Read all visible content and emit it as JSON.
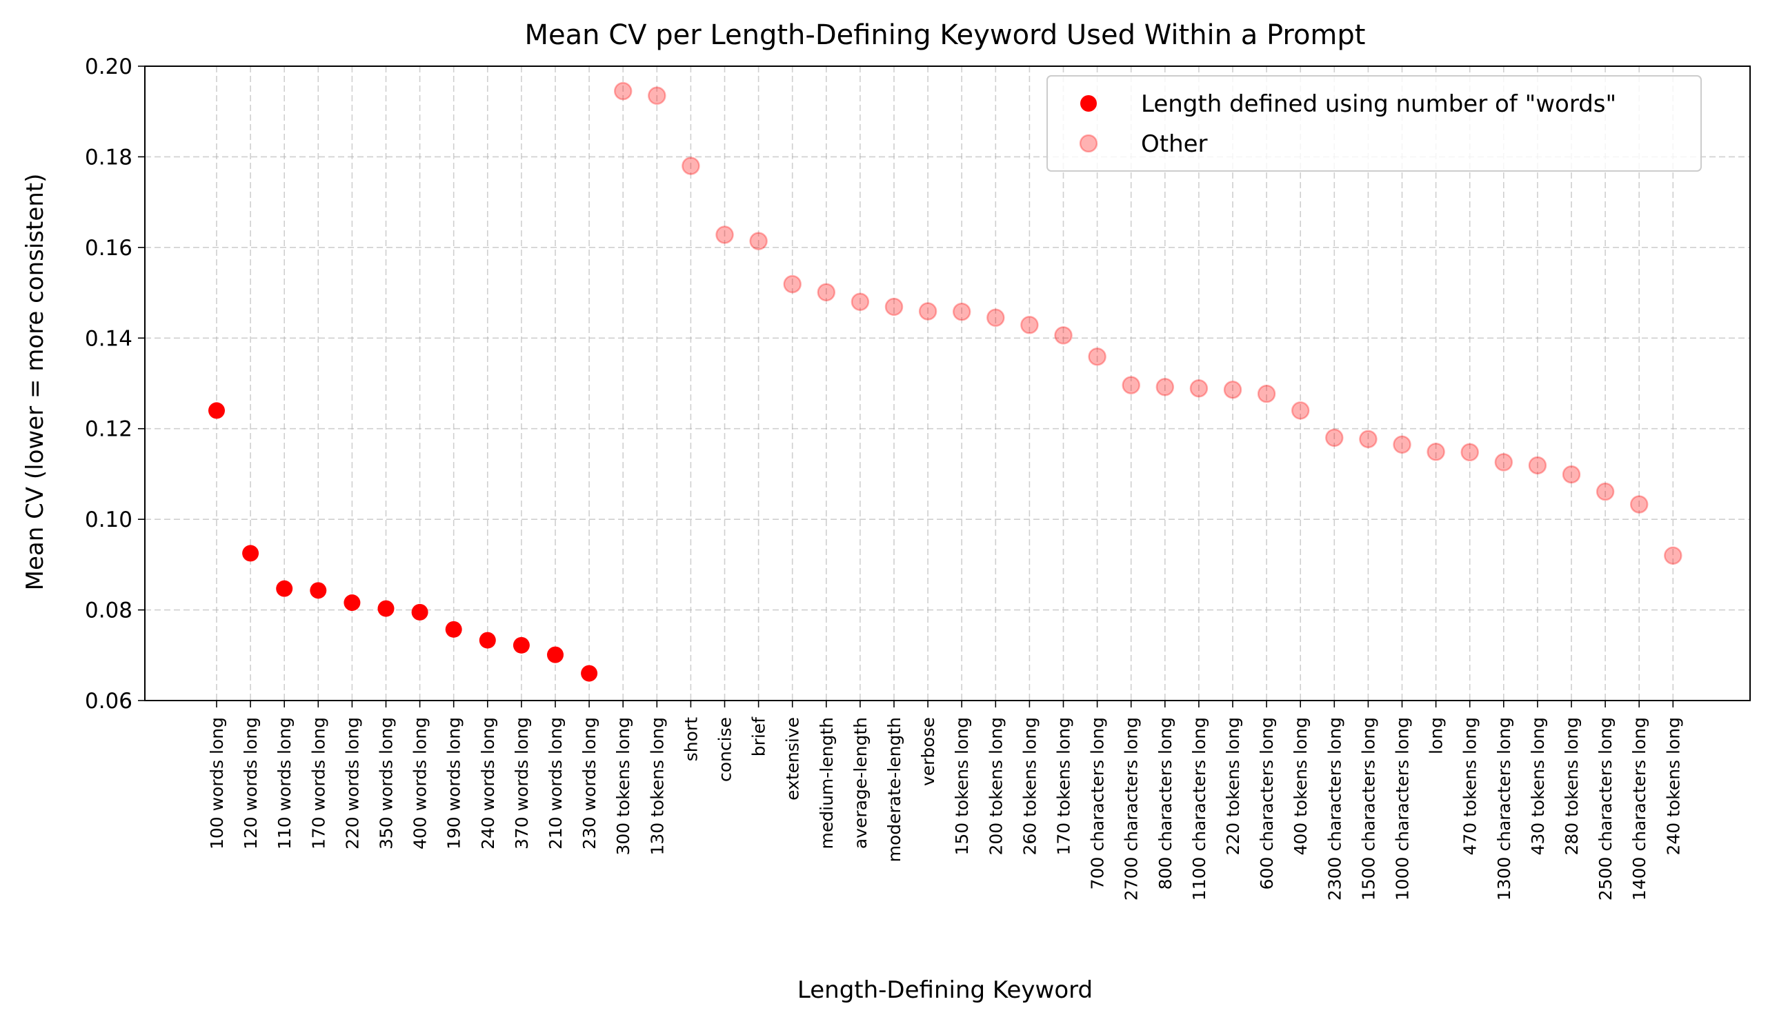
{
  "chart_data": {
    "type": "scatter",
    "title": "Mean CV per Length-Defining Keyword Used Within a Prompt",
    "xlabel": "Length-Defining Keyword",
    "ylabel": "Mean CV (lower = more consistent)",
    "ylim": [
      0.06,
      0.2
    ],
    "yticks": [
      "0.06",
      "0.08",
      "0.10",
      "0.12",
      "0.14",
      "0.16",
      "0.18",
      "0.20"
    ],
    "grid": true,
    "legend_position": "top-right",
    "categories": [
      "100 words long",
      "120 words long",
      "110 words long",
      "170 words long",
      "220 words long",
      "350 words long",
      "400 words long",
      "190 words long",
      "240 words long",
      "370 words long",
      "210 words long",
      "230 words long",
      "300 tokens long",
      "130 tokens long",
      "short",
      "concise",
      "brief",
      "extensive",
      "medium-length",
      "average-length",
      "moderate-length",
      "verbose",
      "150 tokens long",
      "200 tokens long",
      "260 tokens long",
      "170 tokens long",
      "700 characters long",
      "2700 characters long",
      "800 characters long",
      "1100 characters long",
      "220 tokens long",
      "600 characters long",
      "400 tokens long",
      "2300 characters long",
      "1500 characters long",
      "1000 characters long",
      "long",
      "470 tokens long",
      "1300 characters long",
      "430 tokens long",
      "280 tokens long",
      "2500 characters long",
      "1400 characters long",
      "240 tokens long"
    ],
    "series": [
      {
        "name": "Length defined using number of \"words\"",
        "color": "#ff0000",
        "opacity": 1.0,
        "indices": [
          0,
          1,
          2,
          3,
          4,
          5,
          6,
          7,
          8,
          9,
          10,
          11
        ],
        "values": [
          0.124,
          0.0925,
          0.0847,
          0.0843,
          0.0816,
          0.0803,
          0.0795,
          0.0757,
          0.0733,
          0.0722,
          0.0701,
          0.066
        ]
      },
      {
        "name": "Other",
        "color": "#ff0000",
        "opacity": 0.3,
        "indices": [
          12,
          13,
          14,
          15,
          16,
          17,
          18,
          19,
          20,
          21,
          22,
          23,
          24,
          25,
          26,
          27,
          28,
          29,
          30,
          31,
          32,
          33,
          34,
          35,
          36,
          37,
          38,
          39,
          40,
          41,
          42,
          43
        ],
        "values": [
          0.1945,
          0.1935,
          0.178,
          0.1628,
          0.1614,
          0.1519,
          0.1501,
          0.148,
          0.1469,
          0.1459,
          0.1458,
          0.1445,
          0.1429,
          0.1406,
          0.1359,
          0.1296,
          0.1292,
          0.1289,
          0.1286,
          0.1277,
          0.124,
          0.118,
          0.1177,
          0.1165,
          0.1149,
          0.1148,
          0.1126,
          0.1119,
          0.1099,
          0.1061,
          0.1033,
          0.092
        ]
      }
    ]
  }
}
